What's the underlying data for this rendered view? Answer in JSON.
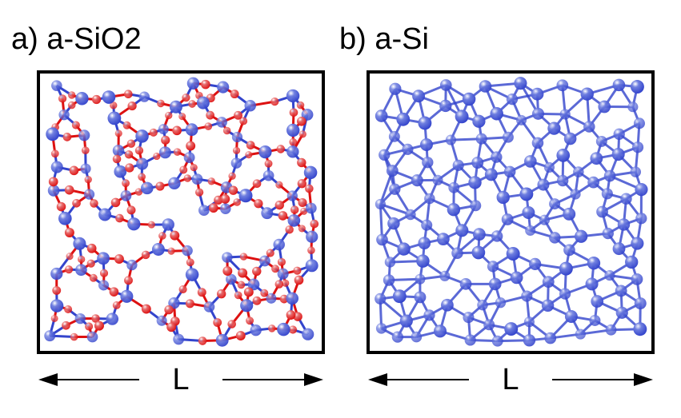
{
  "panels": [
    {
      "id": "a",
      "title": "a) a-SiO2",
      "scale_label": "L",
      "species": [
        {
          "name": "Si",
          "color": "#3344cc"
        },
        {
          "name": "O",
          "color": "#dd1111"
        }
      ]
    },
    {
      "id": "b",
      "title": "b) a-Si",
      "scale_label": "L",
      "species": [
        {
          "name": "Si",
          "color": "#3344cc"
        }
      ]
    }
  ],
  "colors": {
    "si": "#3344cc",
    "si_light": "#6f7fe0",
    "o": "#dd1111",
    "o_light": "#e86a6a",
    "frame": "#000000"
  }
}
